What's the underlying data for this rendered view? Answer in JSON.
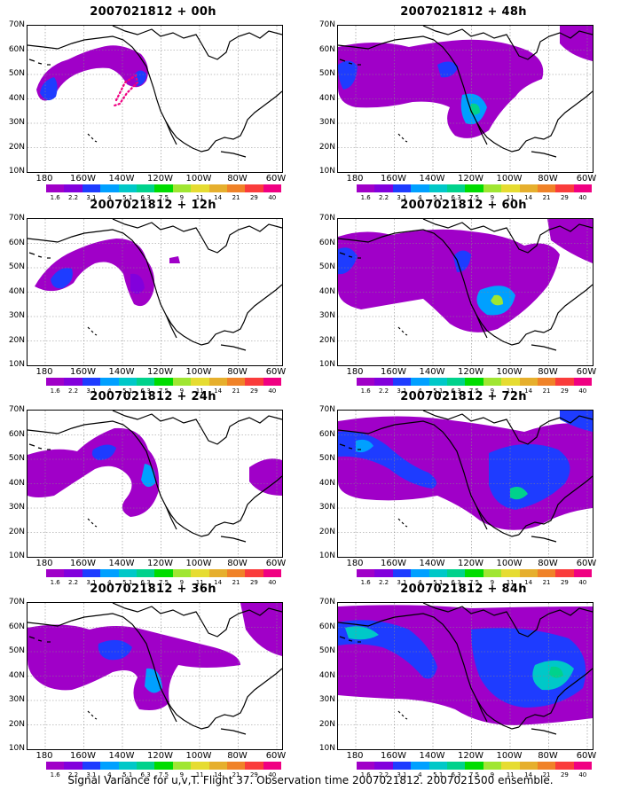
{
  "panels": [
    {
      "title": "2007021812 + 00h",
      "level": 0
    },
    {
      "title": "2007021812 + 48h",
      "level": 4
    },
    {
      "title": "2007021812 + 12h",
      "level": 1
    },
    {
      "title": "2007021812 + 60h",
      "level": 5
    },
    {
      "title": "2007021812 + 24h",
      "level": 2
    },
    {
      "title": "2007021812 + 72h",
      "level": 6
    },
    {
      "title": "2007021812 + 36h",
      "level": 3
    },
    {
      "title": "2007021812 + 84h",
      "level": 7
    }
  ],
  "lat_labels": [
    "70N",
    "60N",
    "50N",
    "40N",
    "30N",
    "20N",
    "10N"
  ],
  "lon_labels": [
    "180",
    "160W",
    "140W",
    "120W",
    "100W",
    "80W",
    "60W"
  ],
  "colorbar": {
    "colors": [
      "#a000c8",
      "#8200dc",
      "#1e3cff",
      "#00a0ff",
      "#00c8c8",
      "#00d28c",
      "#00dc00",
      "#a0e632",
      "#e6dc32",
      "#e6af2d",
      "#f08228",
      "#fa3c3c",
      "#f00082"
    ],
    "ticks": [
      "1.6",
      "2.2",
      "3.1",
      "4",
      "5.1",
      "6.3",
      "7.5",
      "9",
      "11",
      "14",
      "21",
      "29",
      "40"
    ]
  },
  "caption": "Signal Variance for u,v,T. Flight 37. Observation time 2007021812. 2007021500 ensemble."
}
